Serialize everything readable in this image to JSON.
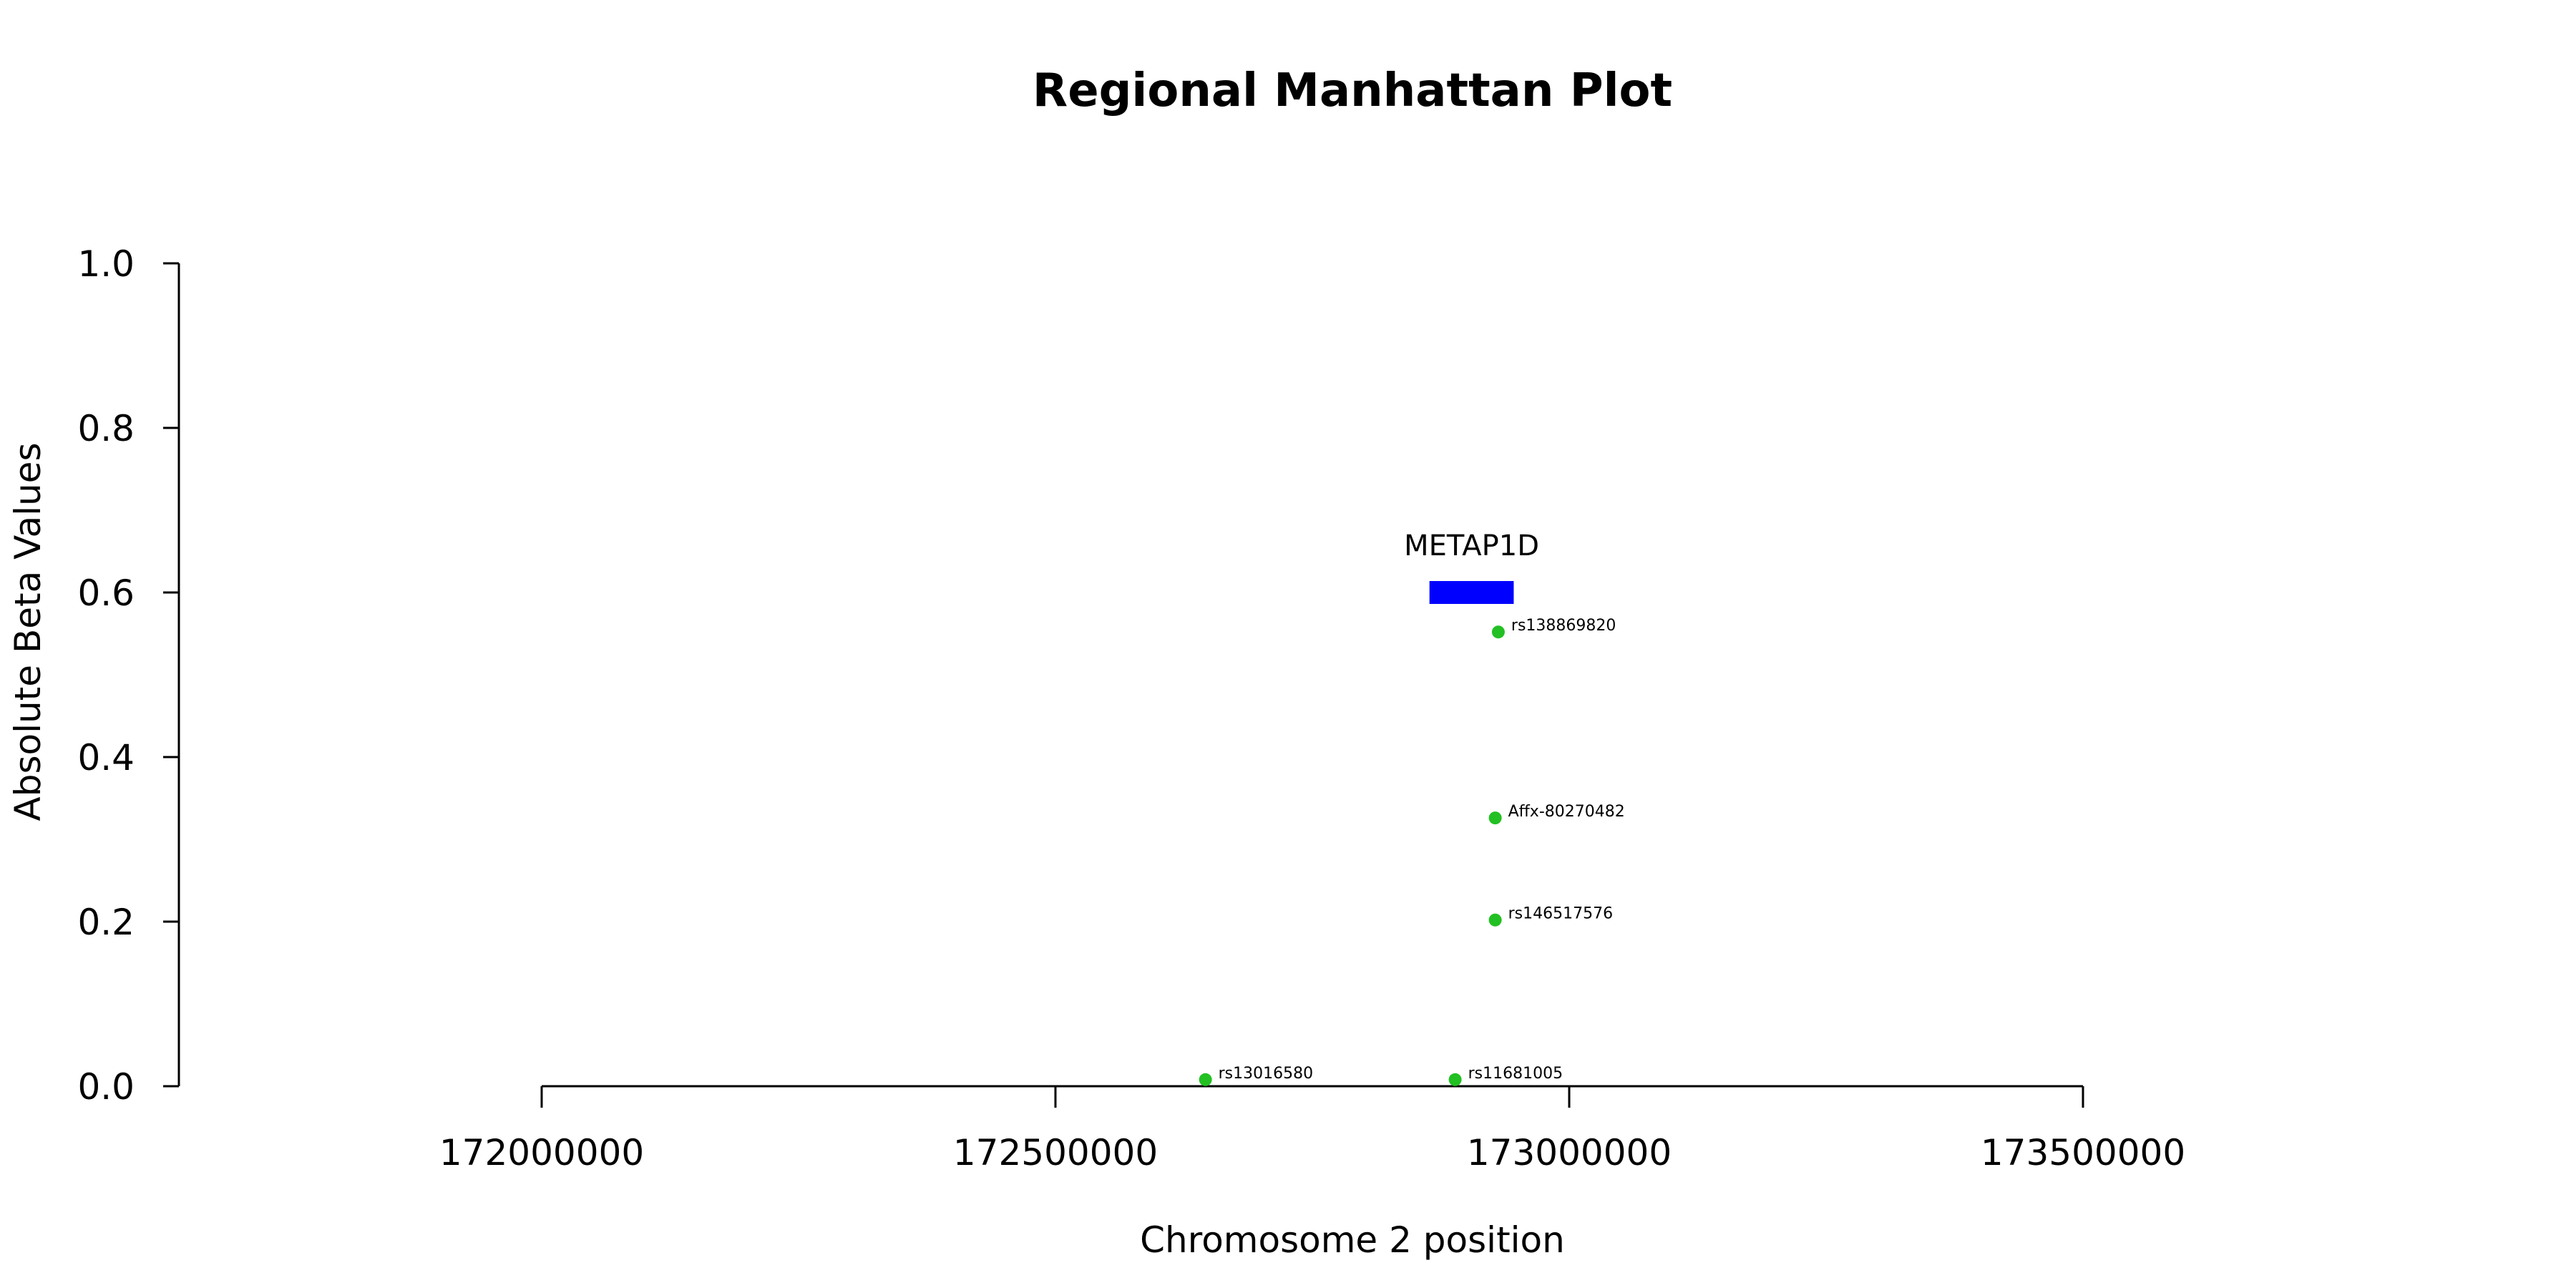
{
  "chart_data": {
    "type": "scatter",
    "title": "Regional Manhattan Plot",
    "xlabel": "Chromosome 2 position",
    "ylabel": "Absolute Beta Values",
    "xlim": [
      172000000,
      173500000
    ],
    "ylim": [
      0,
      1
    ],
    "x_ticks": [
      172000000,
      172500000,
      173000000,
      173500000
    ],
    "x_tick_labels": [
      "172000000",
      "172500000",
      "173000000",
      "173500000"
    ],
    "y_ticks": [
      0,
      0.2,
      0.4,
      0.6,
      0.8,
      1.0
    ],
    "y_tick_labels": [
      "0.0",
      "0.2",
      "0.4",
      "0.6",
      "0.8",
      "1.0"
    ],
    "point_color": "#22c022",
    "gene_color": "#0000ff",
    "points": [
      {
        "label": "rs13016580",
        "x": 172646000,
        "y": 0.008
      },
      {
        "label": "rs11681005",
        "x": 172889000,
        "y": 0.008
      },
      {
        "label": "rs146517576",
        "x": 172928000,
        "y": 0.202
      },
      {
        "label": "Affx-80270482",
        "x": 172928000,
        "y": 0.326
      },
      {
        "label": "rs138869820",
        "x": 172931000,
        "y": 0.552
      }
    ],
    "genes": [
      {
        "name": "METAP1D",
        "start": 172864000,
        "end": 172946000,
        "y": 0.6
      }
    ]
  }
}
